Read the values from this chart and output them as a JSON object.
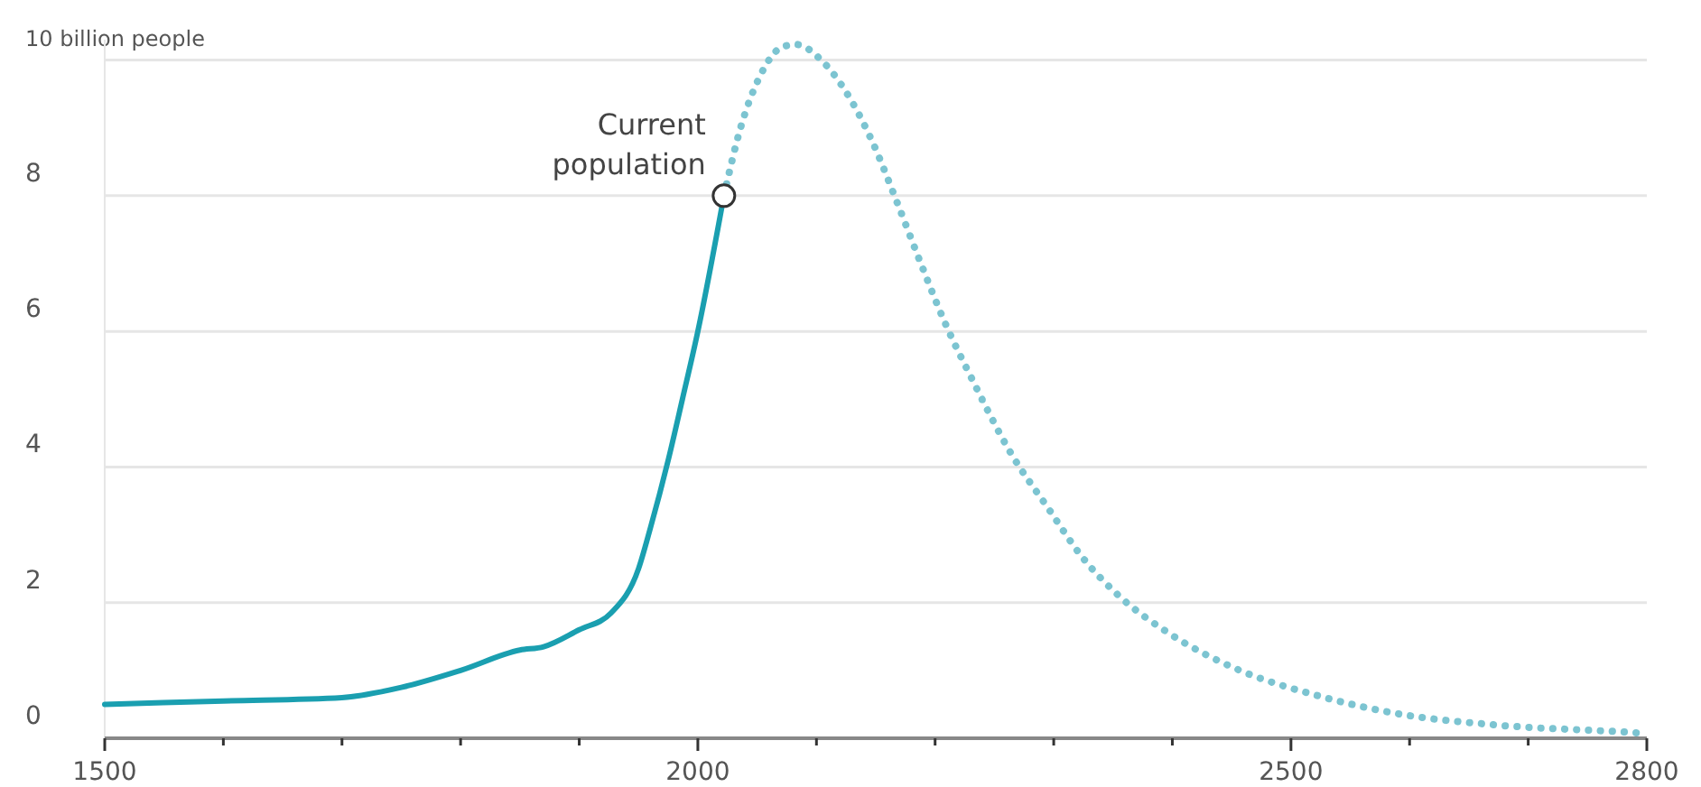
{
  "chart_data": {
    "type": "line",
    "xlim": [
      1500,
      2800
    ],
    "xticks": [
      1500,
      {
        "value": 1600,
        "label": null
      },
      {
        "value": 1700,
        "label": null
      },
      {
        "value": 1800,
        "label": null
      },
      {
        "value": 1900,
        "label": null
      },
      2000,
      {
        "value": 2100,
        "label": null
      },
      {
        "value": 2200,
        "label": null
      },
      {
        "value": 2300,
        "label": null
      },
      {
        "value": 2400,
        "label": null
      },
      2500,
      {
        "value": 2600,
        "label": null
      },
      {
        "value": 2700,
        "label": null
      },
      2800
    ],
    "ylim": [
      0,
      10.3
    ],
    "yticks": [
      0,
      2,
      4,
      6,
      8,
      {
        "value": 10,
        "label": "10 billion people"
      }
    ],
    "grid": "y",
    "series": [
      {
        "color": "#1a9fb0",
        "line_style": "solid",
        "x": [
          1500,
          1600,
          1700,
          1750,
          1800,
          1850,
          1870,
          1900,
          1927,
          1950,
          1960,
          1975,
          1987,
          2000,
          2022
        ],
        "values": [
          0.5,
          0.55,
          0.6,
          0.75,
          1.0,
          1.3,
          1.35,
          1.6,
          1.85,
          2.5,
          3.1,
          4.1,
          5.0,
          6.0,
          8.0
        ]
      },
      {
        "color": "#7cc4d1",
        "line_style": "dotted",
        "x": [
          2022,
          2036,
          2052,
          2072,
          2083,
          2104,
          2126,
          2147,
          2168,
          2188,
          2209,
          2231,
          2264,
          2295,
          2325,
          2355,
          2397,
          2457,
          2518,
          2594,
          2670,
          2792,
          2800
        ],
        "values": [
          8.0,
          9.0,
          9.75,
          10.2,
          10.23,
          10.0,
          9.5,
          8.8,
          7.9,
          7.0,
          6.1,
          5.3,
          4.2,
          3.4,
          2.65,
          2.1,
          1.55,
          1.0,
          0.65,
          0.35,
          0.2,
          0.08,
          0.07
        ]
      }
    ],
    "annotations": [
      {
        "text": "Current population",
        "x": 2022,
        "y": 8.0
      }
    ]
  }
}
